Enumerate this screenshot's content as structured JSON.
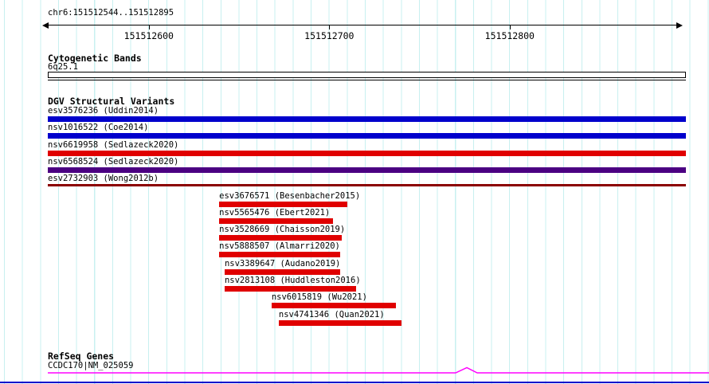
{
  "colors": {
    "background": "#ffffff",
    "grid": "#c8f0f0",
    "text": "#000000",
    "blue": "#0000cc",
    "red": "#e00000",
    "purple": "#4b0082",
    "dark_red": "#8b0000",
    "magenta": "#ff00ff",
    "bottom_line": "#0000cc"
  },
  "sections": {
    "cytogenetic": {
      "title": "Cytogenetic Bands",
      "band_label": "6q25.1"
    },
    "dgv": {
      "title": "DGV Structural Variants"
    },
    "refseq": {
      "title": "RefSeq Genes",
      "gene_label": "CCDC170|NM_025059"
    }
  },
  "chart_data": {
    "type": "genome-track-browser",
    "title": "chr6:151512544..151512895",
    "region": {
      "label": "chr6:151512544..151512895",
      "chrom": "chr6",
      "start": 151512544,
      "end": 151512895
    },
    "axis_ticks": [
      {
        "label": "151512600",
        "pos": 151512600
      },
      {
        "label": "151512700",
        "pos": 151512700
      },
      {
        "label": "151512800",
        "pos": 151512800
      }
    ],
    "cytoband": {
      "name": "6q25.1",
      "start": 151512544,
      "end": 151512895
    },
    "dgv_variants": [
      {
        "name": "esv3576236 (Uddin2014)",
        "start": 151512544,
        "end": 151512895,
        "color": "blue",
        "full": true
      },
      {
        "name": "nsv1016522 (Coe2014)",
        "start": 151512544,
        "end": 151512895,
        "color": "blue",
        "full": true
      },
      {
        "name": "nsv6619958 (Sedlazeck2020)",
        "start": 151512544,
        "end": 151512895,
        "color": "red",
        "full": true
      },
      {
        "name": "nsv6568524 (Sedlazeck2020)",
        "start": 151512544,
        "end": 151512895,
        "color": "purple",
        "full": true
      },
      {
        "name": "esv2732903 (Wong2012b)",
        "start": 151512544,
        "end": 151512895,
        "color": "dark_red",
        "full": true,
        "thin": true
      },
      {
        "name": "esv3676571 (Besenbacher2015)",
        "start": 151512639,
        "end": 151512710,
        "color": "red"
      },
      {
        "name": "nsv5565476 (Ebert2021)",
        "start": 151512639,
        "end": 151512702,
        "color": "red"
      },
      {
        "name": "nsv3528669 (Chaisson2019)",
        "start": 151512639,
        "end": 151512707,
        "color": "red"
      },
      {
        "name": "nsv5888507 (Almarri2020)",
        "start": 151512639,
        "end": 151512706,
        "color": "red"
      },
      {
        "name": "nsv3389647 (Audano2019)",
        "start": 151512642,
        "end": 151512706,
        "color": "red"
      },
      {
        "name": "nsv2813108 (Huddleston2016)",
        "start": 151512642,
        "end": 151512715,
        "color": "red"
      },
      {
        "name": "nsv6015819 (Wu2021)",
        "start": 151512668,
        "end": 151512737,
        "color": "red"
      },
      {
        "name": "nsv4741346 (Quan2021)",
        "start": 151512672,
        "end": 151512740,
        "color": "red"
      }
    ],
    "refseq_gene": {
      "name": "CCDC170|NM_025059",
      "start": 151512544,
      "end": 151512895
    }
  }
}
